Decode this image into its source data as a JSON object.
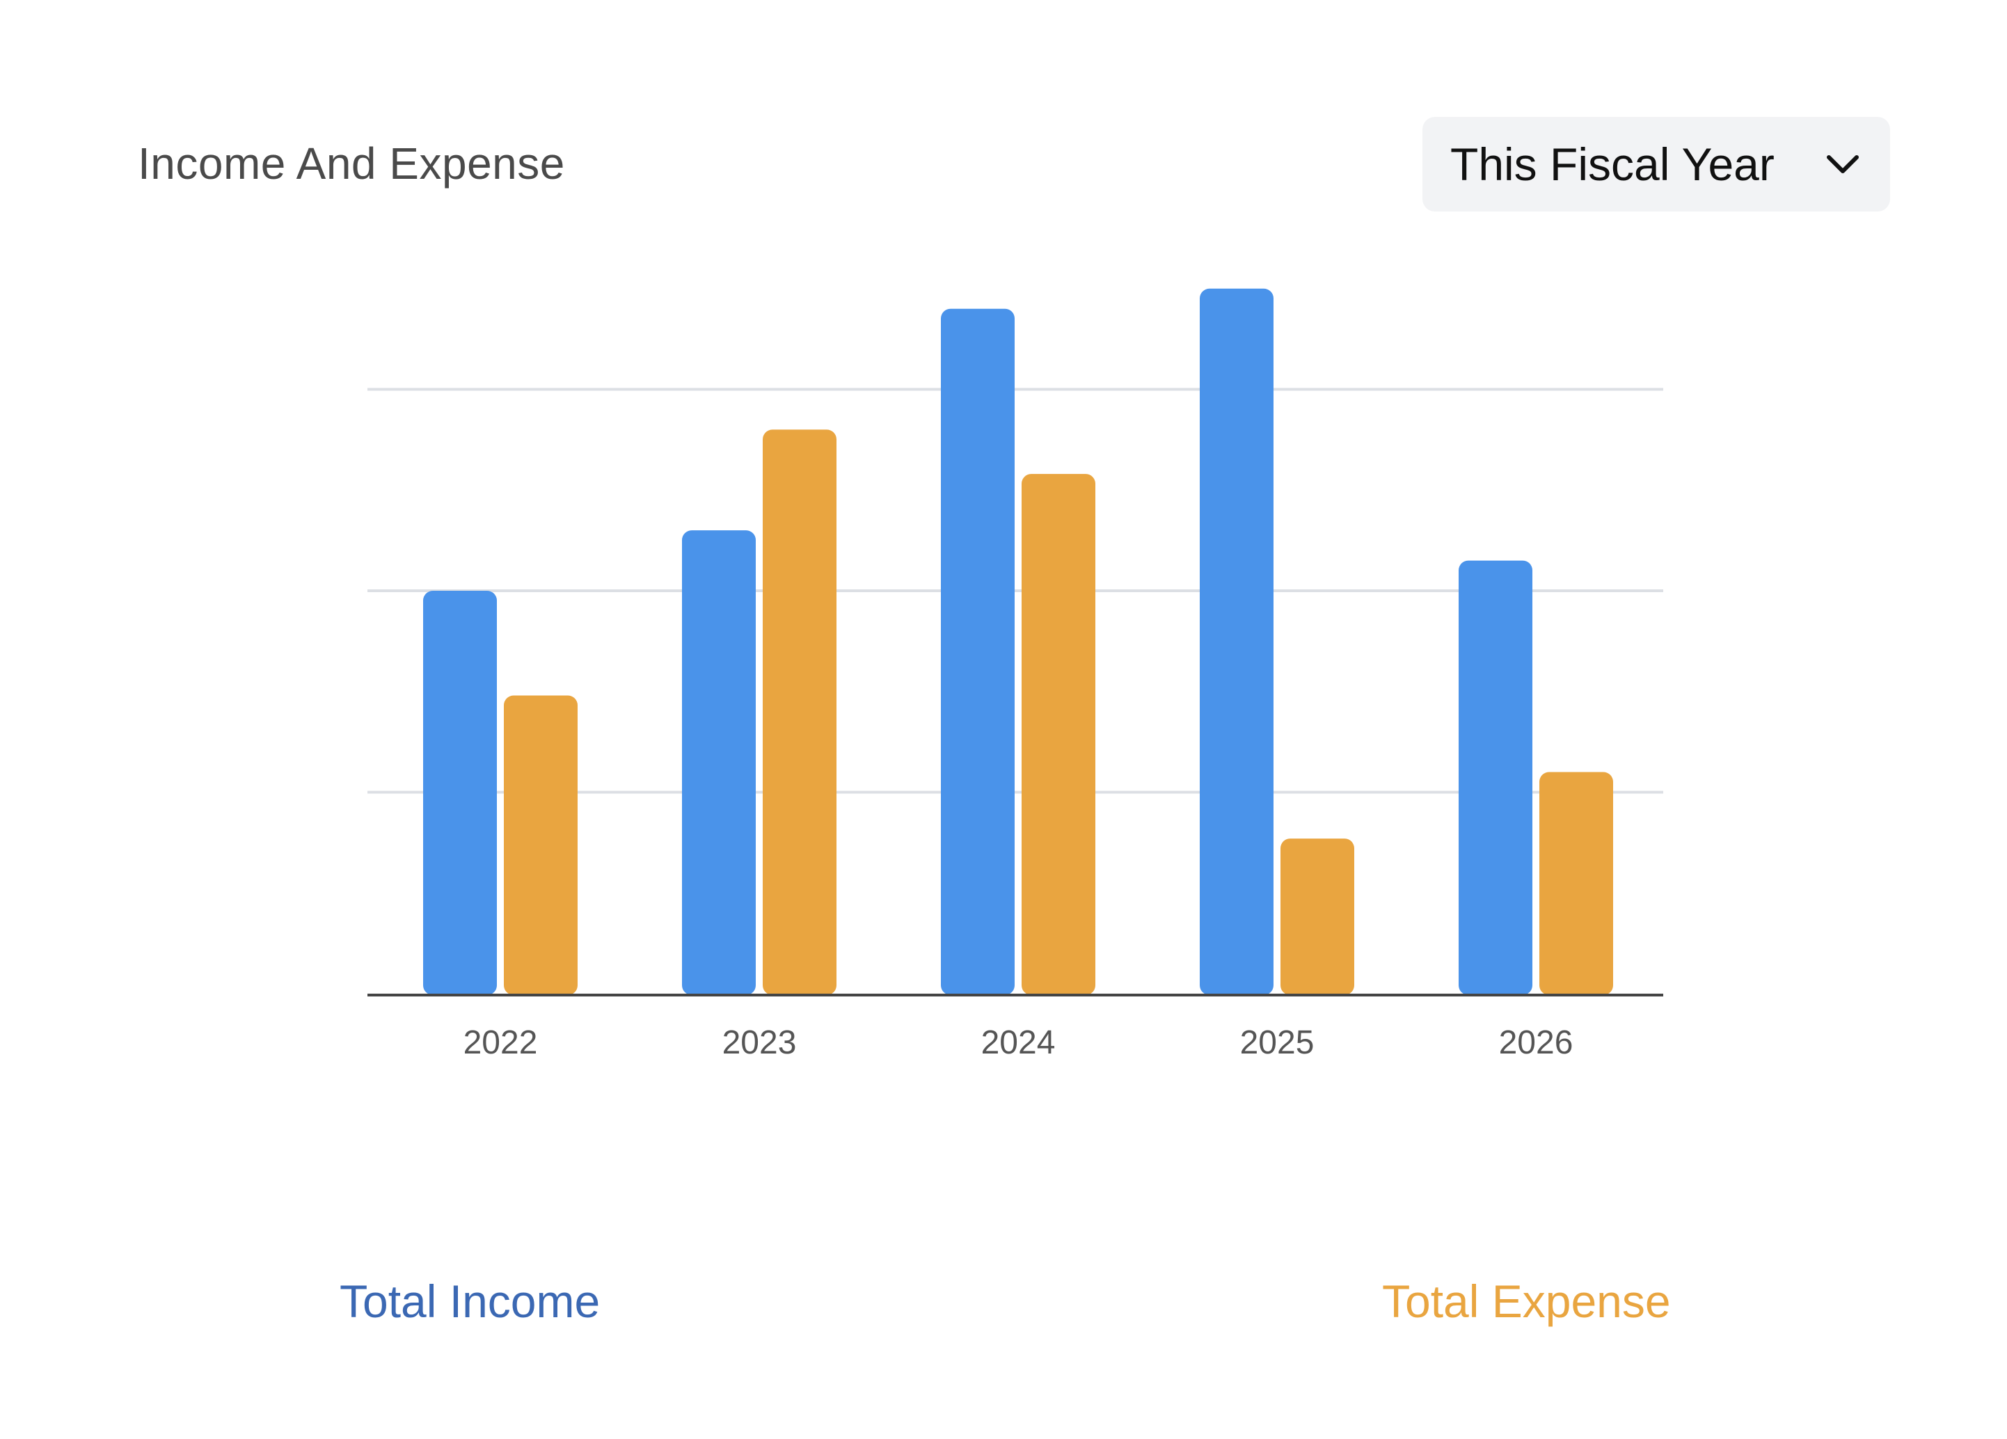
{
  "header": {
    "title": "Income And Expense",
    "period_selector": {
      "selected": "This Fiscal Year",
      "icon": "chevron-down-icon"
    }
  },
  "colors": {
    "income": "#4a93ea",
    "expense": "#e9a540",
    "income_legend": "#3b68b3",
    "expense_legend": "#e9a540",
    "grid": "#dcdfe4",
    "axis": "#444444",
    "tick_label": "#555555"
  },
  "chart_data": {
    "type": "bar",
    "title": "Income And Expense",
    "categories": [
      "2022",
      "2023",
      "2024",
      "2025",
      "2026"
    ],
    "series": [
      {
        "name": "Total Income",
        "values": [
          2.0,
          2.3,
          3.4,
          3.5,
          2.15
        ]
      },
      {
        "name": "Total Expense",
        "values": [
          1.48,
          2.8,
          2.58,
          0.77,
          1.1
        ]
      }
    ],
    "ylim": [
      0,
      3
    ],
    "yticks": [
      0,
      1,
      2,
      3
    ],
    "y_tick_labels_shown": false,
    "grid": true,
    "legend_position": "bottom"
  },
  "legend": {
    "income_label": "Total Income",
    "expense_label": "Total Expense"
  }
}
